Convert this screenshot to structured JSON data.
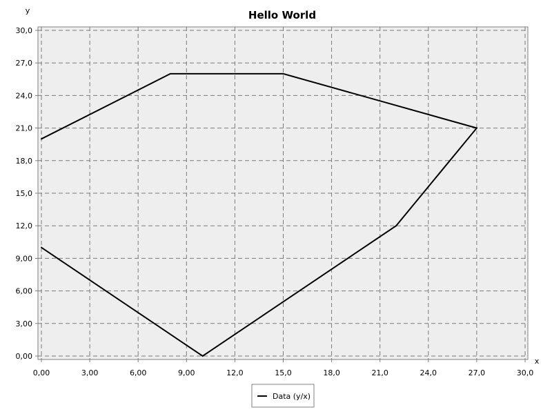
{
  "chart_data": {
    "type": "line",
    "title": "Hello World",
    "xlabel": "x",
    "ylabel": "y",
    "xlim": [
      0,
      30
    ],
    "ylim": [
      0,
      30
    ],
    "grid": true,
    "legend_position": "bottom",
    "x_ticks": [
      "0,00",
      "3,00",
      "6,00",
      "9,00",
      "12,0",
      "15,0",
      "18,0",
      "21,0",
      "24,0",
      "27,0",
      "30,0"
    ],
    "y_ticks": [
      "0,00",
      "3,00",
      "6,00",
      "9,00",
      "12,0",
      "15,0",
      "18,0",
      "21,0",
      "24,0",
      "27,0",
      "30,0"
    ],
    "series": [
      {
        "name": "Data (y/x)",
        "color": "#000000",
        "points": [
          {
            "x": 0,
            "y": 20
          },
          {
            "x": 8,
            "y": 26
          },
          {
            "x": 15,
            "y": 26
          },
          {
            "x": 27,
            "y": 21
          },
          {
            "x": 22,
            "y": 12
          },
          {
            "x": 10,
            "y": 0
          },
          {
            "x": 0,
            "y": 10
          }
        ]
      }
    ]
  }
}
